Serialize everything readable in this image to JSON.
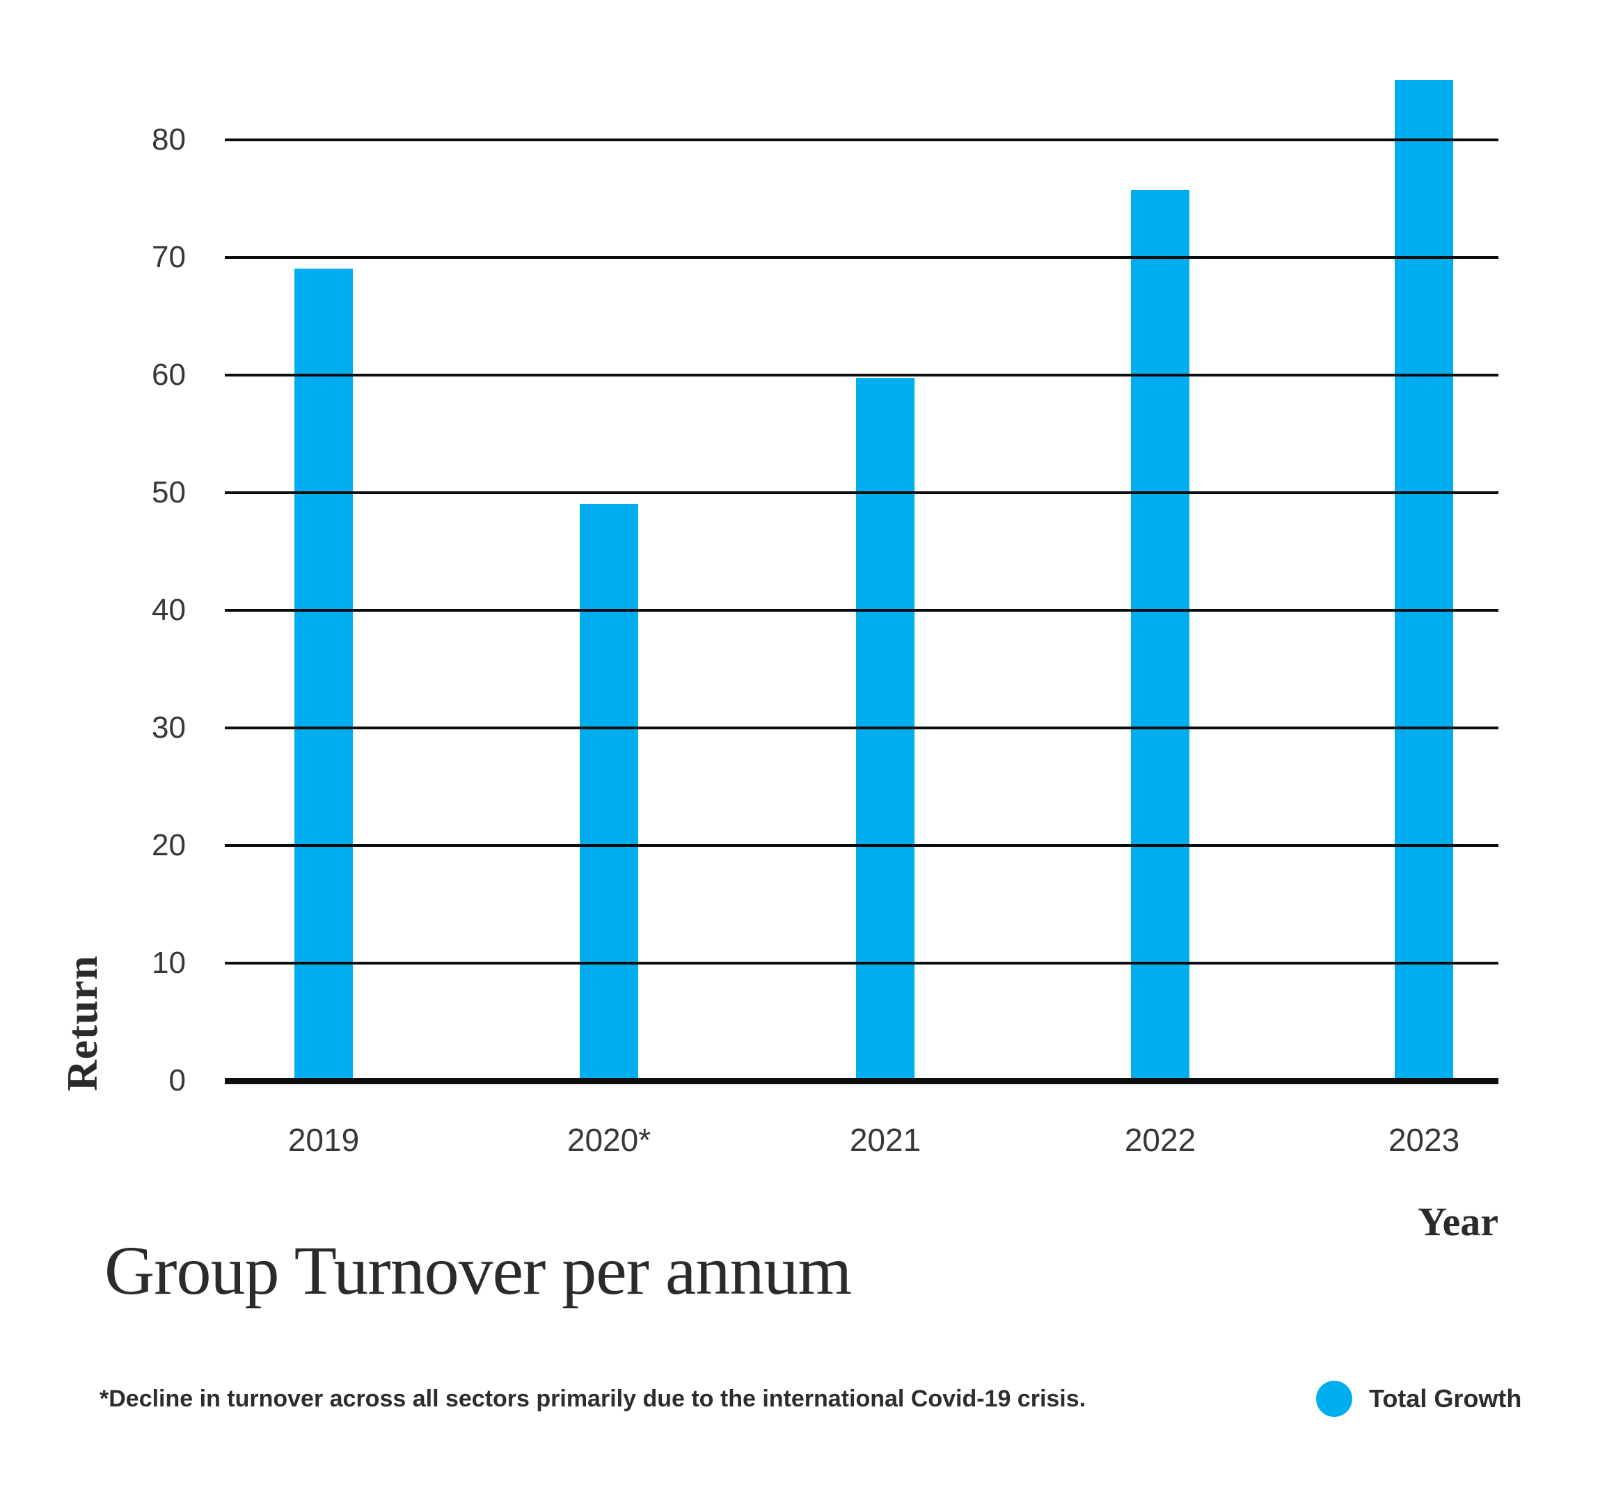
{
  "chart_data": {
    "type": "bar",
    "title": "Group Turnover per annum",
    "xlabel": "Year",
    "ylabel": "Return",
    "categories": [
      "2019",
      "2020*",
      "2021",
      "2022",
      "2023"
    ],
    "series": [
      {
        "name": "Total Growth",
        "values": [
          69.3,
          49.3,
          60,
          76,
          85.3
        ]
      }
    ],
    "yticks": [
      0,
      10,
      20,
      30,
      40,
      50,
      60,
      70,
      80
    ],
    "ylim": [
      0,
      86
    ],
    "grid": "horizontal-only",
    "bar_color": "#00AEEF",
    "legend_position": "bottom-right"
  },
  "footnote": "*Decline in turnover across all sectors primarily due to the international Covid-19 crisis.",
  "legend": {
    "label": "Total Growth",
    "marker_color": "#00AEEF"
  },
  "colors": {
    "bar": "#00AEEF",
    "gridline": "#0d0d0d",
    "tick_text": "#383838",
    "heading_text": "#2d2a2b"
  }
}
